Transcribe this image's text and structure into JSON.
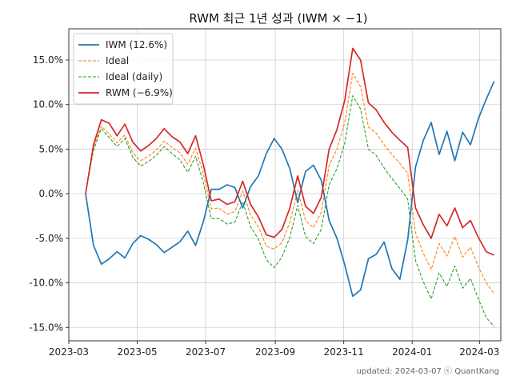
{
  "chart_data": {
    "type": "line",
    "title": "RWM 최근 1년 성과 (IWM × −1)",
    "xlabel": "",
    "ylabel": "",
    "footer": "updated: 2024-03-07 ⓒ QuantKang",
    "x_ticks": [
      "2023-03",
      "2023-05",
      "2023-07",
      "2023-09",
      "2023-11",
      "2024-01",
      "2024-03"
    ],
    "y_ticks": [
      "-15.0%",
      "-10.0%",
      "-5.0%",
      "0.0%",
      "5.0%",
      "10.0%",
      "15.0%"
    ],
    "y_tick_values": [
      -15,
      -10,
      -5,
      0,
      5,
      10,
      15
    ],
    "x_range": [
      "2023-03-01",
      "2024-03-20"
    ],
    "ylim": [
      -16.5,
      18.5
    ],
    "grid": true,
    "legend_position": "top-left",
    "series": [
      {
        "name": "IWM (12.6%)",
        "color": "#1f77b4",
        "style": "solid",
        "points": [
          [
            "2023-03-16",
            0.0
          ],
          [
            "2023-03-23",
            -5.8
          ],
          [
            "2023-03-30",
            -7.9
          ],
          [
            "2023-04-06",
            -7.3
          ],
          [
            "2023-04-13",
            -6.5
          ],
          [
            "2023-04-20",
            -7.2
          ],
          [
            "2023-04-27",
            -5.6
          ],
          [
            "2023-05-04",
            -4.7
          ],
          [
            "2023-05-11",
            -5.1
          ],
          [
            "2023-05-18",
            -5.7
          ],
          [
            "2023-05-25",
            -6.6
          ],
          [
            "2023-06-01",
            -6.0
          ],
          [
            "2023-06-08",
            -5.4
          ],
          [
            "2023-06-15",
            -4.2
          ],
          [
            "2023-06-22",
            -5.8
          ],
          [
            "2023-06-29",
            -3.1
          ],
          [
            "2023-07-06",
            0.5
          ],
          [
            "2023-07-13",
            0.5
          ],
          [
            "2023-07-20",
            1.0
          ],
          [
            "2023-07-27",
            0.7
          ],
          [
            "2023-08-03",
            -1.6
          ],
          [
            "2023-08-10",
            0.8
          ],
          [
            "2023-08-17",
            2.0
          ],
          [
            "2023-08-24",
            4.5
          ],
          [
            "2023-08-31",
            6.2
          ],
          [
            "2023-09-07",
            5.0
          ],
          [
            "2023-09-14",
            2.8
          ],
          [
            "2023-09-21",
            -1.0
          ],
          [
            "2023-09-28",
            2.5
          ],
          [
            "2023-10-05",
            3.2
          ],
          [
            "2023-10-12",
            1.5
          ],
          [
            "2023-10-19",
            -3.0
          ],
          [
            "2023-10-26",
            -5.0
          ],
          [
            "2023-11-02",
            -8.0
          ],
          [
            "2023-11-09",
            -11.5
          ],
          [
            "2023-11-16",
            -10.8
          ],
          [
            "2023-11-23",
            -7.3
          ],
          [
            "2023-11-30",
            -6.8
          ],
          [
            "2023-12-07",
            -5.4
          ],
          [
            "2023-12-14",
            -8.4
          ],
          [
            "2023-12-21",
            -9.6
          ],
          [
            "2023-12-28",
            -5.2
          ],
          [
            "2024-01-04",
            3.0
          ],
          [
            "2024-01-11",
            6.0
          ],
          [
            "2024-01-18",
            8.0
          ],
          [
            "2024-01-25",
            4.4
          ],
          [
            "2024-02-01",
            7.0
          ],
          [
            "2024-02-08",
            3.7
          ],
          [
            "2024-02-15",
            6.9
          ],
          [
            "2024-02-22",
            5.5
          ],
          [
            "2024-02-29",
            8.4
          ],
          [
            "2024-03-07",
            10.6
          ],
          [
            "2024-03-14",
            12.6
          ]
        ]
      },
      {
        "name": "Ideal",
        "color": "#ff7f0e",
        "style": "dashed",
        "points": [
          [
            "2023-03-16",
            0.0
          ],
          [
            "2023-03-23",
            5.3
          ],
          [
            "2023-03-30",
            7.6
          ],
          [
            "2023-04-06",
            6.7
          ],
          [
            "2023-04-13",
            5.7
          ],
          [
            "2023-04-20",
            6.6
          ],
          [
            "2023-04-27",
            4.6
          ],
          [
            "2023-05-04",
            3.7
          ],
          [
            "2023-05-11",
            4.2
          ],
          [
            "2023-05-18",
            4.9
          ],
          [
            "2023-05-25",
            5.9
          ],
          [
            "2023-06-01",
            5.2
          ],
          [
            "2023-06-08",
            4.6
          ],
          [
            "2023-06-15",
            3.3
          ],
          [
            "2023-06-22",
            5.1
          ],
          [
            "2023-06-29",
            2.2
          ],
          [
            "2023-07-06",
            -1.7
          ],
          [
            "2023-07-13",
            -1.6
          ],
          [
            "2023-07-20",
            -2.3
          ],
          [
            "2023-07-27",
            -2.0
          ],
          [
            "2023-08-03",
            0.3
          ],
          [
            "2023-08-10",
            -2.4
          ],
          [
            "2023-08-17",
            -3.7
          ],
          [
            "2023-08-24",
            -5.9
          ],
          [
            "2023-08-31",
            -6.2
          ],
          [
            "2023-09-07",
            -5.5
          ],
          [
            "2023-09-14",
            -3.2
          ],
          [
            "2023-09-21",
            0.4
          ],
          [
            "2023-09-28",
            -3.0
          ],
          [
            "2023-10-05",
            -3.8
          ],
          [
            "2023-10-12",
            -2.1
          ],
          [
            "2023-10-19",
            3.2
          ],
          [
            "2023-10-26",
            5.0
          ],
          [
            "2023-11-02",
            8.0
          ],
          [
            "2023-11-09",
            13.5
          ],
          [
            "2023-11-16",
            12.0
          ],
          [
            "2023-11-23",
            7.5
          ],
          [
            "2023-11-30",
            6.8
          ],
          [
            "2023-12-07",
            5.5
          ],
          [
            "2023-12-14",
            4.4
          ],
          [
            "2023-12-21",
            3.4
          ],
          [
            "2023-12-28",
            2.3
          ],
          [
            "2024-01-04",
            -4.4
          ],
          [
            "2024-01-11",
            -6.7
          ],
          [
            "2024-01-18",
            -8.5
          ],
          [
            "2024-01-25",
            -5.6
          ],
          [
            "2024-02-01",
            -7.0
          ],
          [
            "2024-02-08",
            -4.8
          ],
          [
            "2024-02-15",
            -7.1
          ],
          [
            "2024-02-22",
            -6.0
          ],
          [
            "2024-02-29",
            -8.2
          ],
          [
            "2024-03-07",
            -10.0
          ],
          [
            "2024-03-14",
            -11.2
          ]
        ]
      },
      {
        "name": "Ideal (daily)",
        "color": "#2ca02c",
        "style": "dashed",
        "points": [
          [
            "2023-03-16",
            0.0
          ],
          [
            "2023-03-23",
            4.9
          ],
          [
            "2023-03-30",
            7.3
          ],
          [
            "2023-04-06",
            6.3
          ],
          [
            "2023-04-13",
            5.3
          ],
          [
            "2023-04-20",
            6.2
          ],
          [
            "2023-04-27",
            4.1
          ],
          [
            "2023-05-04",
            3.1
          ],
          [
            "2023-05-11",
            3.6
          ],
          [
            "2023-05-18",
            4.3
          ],
          [
            "2023-05-25",
            5.3
          ],
          [
            "2023-06-01",
            4.5
          ],
          [
            "2023-06-08",
            3.8
          ],
          [
            "2023-06-15",
            2.4
          ],
          [
            "2023-06-22",
            4.2
          ],
          [
            "2023-06-29",
            1.2
          ],
          [
            "2023-07-06",
            -2.8
          ],
          [
            "2023-07-13",
            -2.8
          ],
          [
            "2023-07-20",
            -3.4
          ],
          [
            "2023-07-27",
            -3.2
          ],
          [
            "2023-08-03",
            -0.9
          ],
          [
            "2023-08-10",
            -3.7
          ],
          [
            "2023-08-17",
            -5.1
          ],
          [
            "2023-08-24",
            -7.4
          ],
          [
            "2023-08-31",
            -8.3
          ],
          [
            "2023-09-07",
            -7.1
          ],
          [
            "2023-09-14",
            -4.9
          ],
          [
            "2023-09-21",
            -1.3
          ],
          [
            "2023-09-28",
            -4.8
          ],
          [
            "2023-10-05",
            -5.6
          ],
          [
            "2023-10-12",
            -4.0
          ],
          [
            "2023-10-19",
            1.0
          ],
          [
            "2023-10-26",
            2.8
          ],
          [
            "2023-11-02",
            5.7
          ],
          [
            "2023-11-09",
            11.0
          ],
          [
            "2023-11-16",
            9.5
          ],
          [
            "2023-11-23",
            5.0
          ],
          [
            "2023-11-30",
            4.3
          ],
          [
            "2023-12-07",
            2.9
          ],
          [
            "2023-12-14",
            1.7
          ],
          [
            "2023-12-21",
            0.6
          ],
          [
            "2023-12-28",
            -0.6
          ],
          [
            "2024-01-04",
            -7.5
          ],
          [
            "2024-01-11",
            -9.9
          ],
          [
            "2024-01-18",
            -11.8
          ],
          [
            "2024-01-25",
            -8.9
          ],
          [
            "2024-02-01",
            -10.4
          ],
          [
            "2024-02-08",
            -8.1
          ],
          [
            "2024-02-15",
            -10.6
          ],
          [
            "2024-02-22",
            -9.5
          ],
          [
            "2024-02-29",
            -11.8
          ],
          [
            "2024-03-07",
            -13.9
          ],
          [
            "2024-03-14",
            -14.9
          ]
        ]
      },
      {
        "name": "RWM (−6.9%)",
        "color": "#d62728",
        "style": "solid",
        "points": [
          [
            "2023-03-16",
            0.0
          ],
          [
            "2023-03-23",
            5.5
          ],
          [
            "2023-03-30",
            8.3
          ],
          [
            "2023-04-06",
            7.9
          ],
          [
            "2023-04-13",
            6.5
          ],
          [
            "2023-04-20",
            7.8
          ],
          [
            "2023-04-27",
            5.8
          ],
          [
            "2023-05-04",
            4.8
          ],
          [
            "2023-05-11",
            5.4
          ],
          [
            "2023-05-18",
            6.2
          ],
          [
            "2023-05-25",
            7.3
          ],
          [
            "2023-06-01",
            6.4
          ],
          [
            "2023-06-08",
            5.8
          ],
          [
            "2023-06-15",
            4.5
          ],
          [
            "2023-06-22",
            6.5
          ],
          [
            "2023-06-29",
            3.2
          ],
          [
            "2023-07-06",
            -0.8
          ],
          [
            "2023-07-13",
            -0.6
          ],
          [
            "2023-07-20",
            -1.2
          ],
          [
            "2023-07-27",
            -0.9
          ],
          [
            "2023-08-03",
            1.4
          ],
          [
            "2023-08-10",
            -1.2
          ],
          [
            "2023-08-17",
            -2.6
          ],
          [
            "2023-08-24",
            -4.6
          ],
          [
            "2023-08-31",
            -4.9
          ],
          [
            "2023-09-07",
            -4.0
          ],
          [
            "2023-09-14",
            -1.6
          ],
          [
            "2023-09-21",
            2.0
          ],
          [
            "2023-09-28",
            -1.4
          ],
          [
            "2023-10-05",
            -2.2
          ],
          [
            "2023-10-12",
            -0.4
          ],
          [
            "2023-10-19",
            5.0
          ],
          [
            "2023-10-26",
            7.2
          ],
          [
            "2023-11-02",
            10.5
          ],
          [
            "2023-11-09",
            16.3
          ],
          [
            "2023-11-16",
            15.0
          ],
          [
            "2023-11-23",
            10.2
          ],
          [
            "2023-11-30",
            9.4
          ],
          [
            "2023-12-07",
            8.0
          ],
          [
            "2023-12-14",
            6.9
          ],
          [
            "2023-12-21",
            6.0
          ],
          [
            "2023-12-28",
            5.2
          ],
          [
            "2024-01-04",
            -1.6
          ],
          [
            "2024-01-11",
            -3.5
          ],
          [
            "2024-01-18",
            -5.0
          ],
          [
            "2024-01-25",
            -2.3
          ],
          [
            "2024-02-01",
            -3.6
          ],
          [
            "2024-02-08",
            -1.6
          ],
          [
            "2024-02-15",
            -3.8
          ],
          [
            "2024-02-22",
            -3.0
          ],
          [
            "2024-02-29",
            -4.9
          ],
          [
            "2024-03-07",
            -6.5
          ],
          [
            "2024-03-14",
            -6.9
          ]
        ]
      }
    ]
  }
}
